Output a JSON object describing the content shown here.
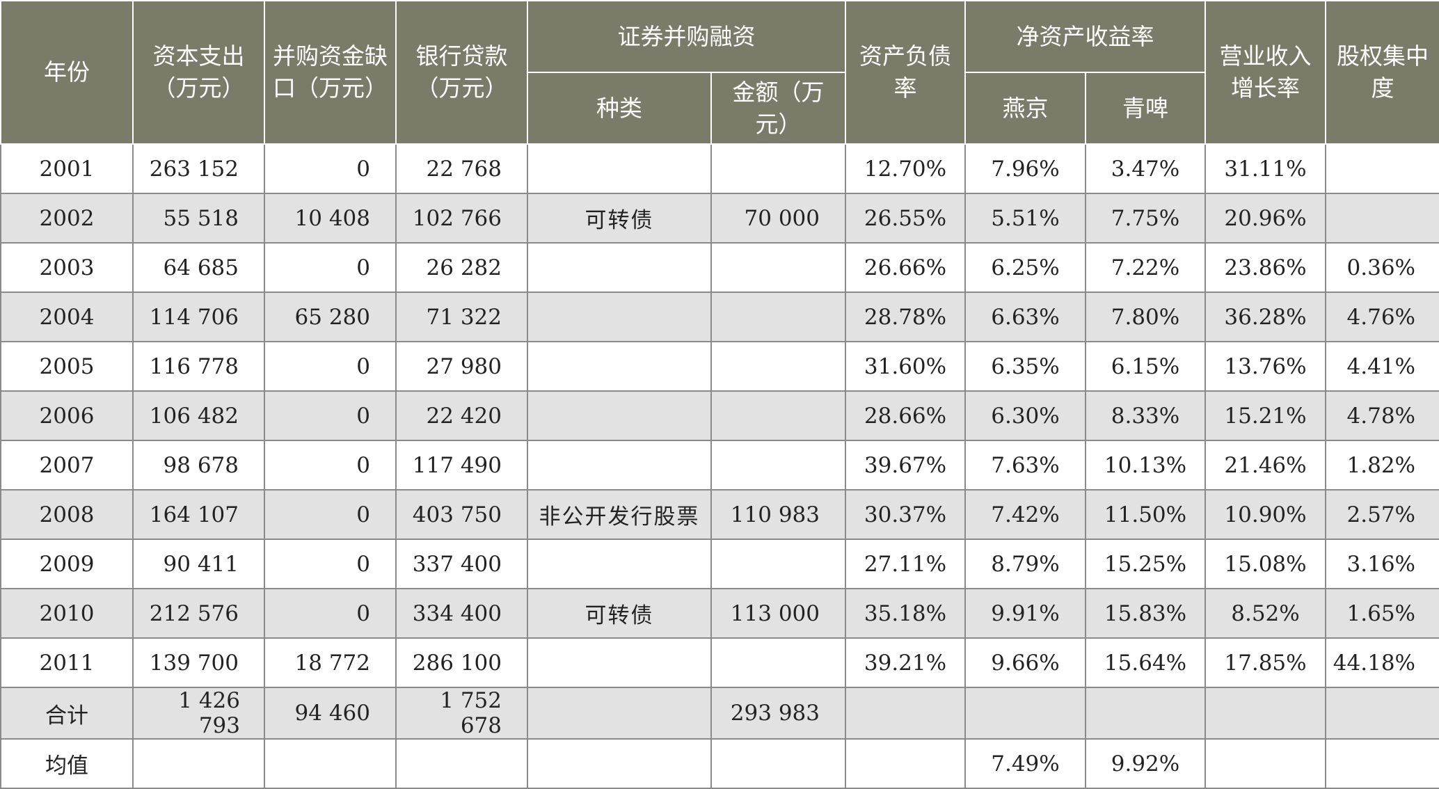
{
  "headers": {
    "year": "年份",
    "capex": "资本支出（万元）",
    "gap": "并购资金缺口（万元）",
    "loan": "银行贷款（万元）",
    "sec_group": "证券并购融资",
    "sec_kind": "种类",
    "sec_amount": "金额（万元）",
    "debt_ratio": "资产负债率",
    "roe_group": "净资产收益率",
    "roe_yanjing": "燕京",
    "roe_qingpi": "青啤",
    "rev_growth": "营业收入增长率",
    "equity_conc": "股权集中度"
  },
  "rows": [
    {
      "year": "2001",
      "capex": "263 152",
      "gap": "0",
      "loan": "22 768",
      "kind": "",
      "amount": "",
      "debt": "12.70%",
      "yj": "7.96%",
      "qp": "3.47%",
      "rev": "31.11%",
      "eq": ""
    },
    {
      "year": "2002",
      "capex": "55 518",
      "gap": "10 408",
      "loan": "102 766",
      "kind": "可转债",
      "amount": "70 000",
      "debt": "26.55%",
      "yj": "5.51%",
      "qp": "7.75%",
      "rev": "20.96%",
      "eq": ""
    },
    {
      "year": "2003",
      "capex": "64 685",
      "gap": "0",
      "loan": "26 282",
      "kind": "",
      "amount": "",
      "debt": "26.66%",
      "yj": "6.25%",
      "qp": "7.22%",
      "rev": "23.86%",
      "eq": "0.36%"
    },
    {
      "year": "2004",
      "capex": "114 706",
      "gap": "65 280",
      "loan": "71 322",
      "kind": "",
      "amount": "",
      "debt": "28.78%",
      "yj": "6.63%",
      "qp": "7.80%",
      "rev": "36.28%",
      "eq": "4.76%"
    },
    {
      "year": "2005",
      "capex": "116 778",
      "gap": "0",
      "loan": "27 980",
      "kind": "",
      "amount": "",
      "debt": "31.60%",
      "yj": "6.35%",
      "qp": "6.15%",
      "rev": "13.76%",
      "eq": "4.41%"
    },
    {
      "year": "2006",
      "capex": "106 482",
      "gap": "0",
      "loan": "22 420",
      "kind": "",
      "amount": "",
      "debt": "28.66%",
      "yj": "6.30%",
      "qp": "8.33%",
      "rev": "15.21%",
      "eq": "4.78%"
    },
    {
      "year": "2007",
      "capex": "98 678",
      "gap": "0",
      "loan": "117 490",
      "kind": "",
      "amount": "",
      "debt": "39.67%",
      "yj": "7.63%",
      "qp": "10.13%",
      "rev": "21.46%",
      "eq": "1.82%"
    },
    {
      "year": "2008",
      "capex": "164 107",
      "gap": "0",
      "loan": "403 750",
      "kind": "非公开发行股票",
      "amount": "110 983",
      "debt": "30.37%",
      "yj": "7.42%",
      "qp": "11.50%",
      "rev": "10.90%",
      "eq": "2.57%"
    },
    {
      "year": "2009",
      "capex": "90 411",
      "gap": "0",
      "loan": "337 400",
      "kind": "",
      "amount": "",
      "debt": "27.11%",
      "yj": "8.79%",
      "qp": "15.25%",
      "rev": "15.08%",
      "eq": "3.16%"
    },
    {
      "year": "2010",
      "capex": "212 576",
      "gap": "0",
      "loan": "334 400",
      "kind": "可转债",
      "amount": "113 000",
      "debt": "35.18%",
      "yj": "9.91%",
      "qp": "15.83%",
      "rev": "8.52%",
      "eq": "1.65%"
    },
    {
      "year": "2011",
      "capex": "139 700",
      "gap": "18 772",
      "loan": "286 100",
      "kind": "",
      "amount": "",
      "debt": "39.21%",
      "yj": "9.66%",
      "qp": "15.64%",
      "rev": "17.85%",
      "eq": "44.18%"
    }
  ],
  "total": {
    "label": "合计",
    "capex": "1 426 793",
    "gap": "94 460",
    "loan": "1 752 678",
    "amount": "293 983"
  },
  "mean": {
    "label": "均值",
    "yj": "7.49%",
    "qp": "9.92%"
  }
}
